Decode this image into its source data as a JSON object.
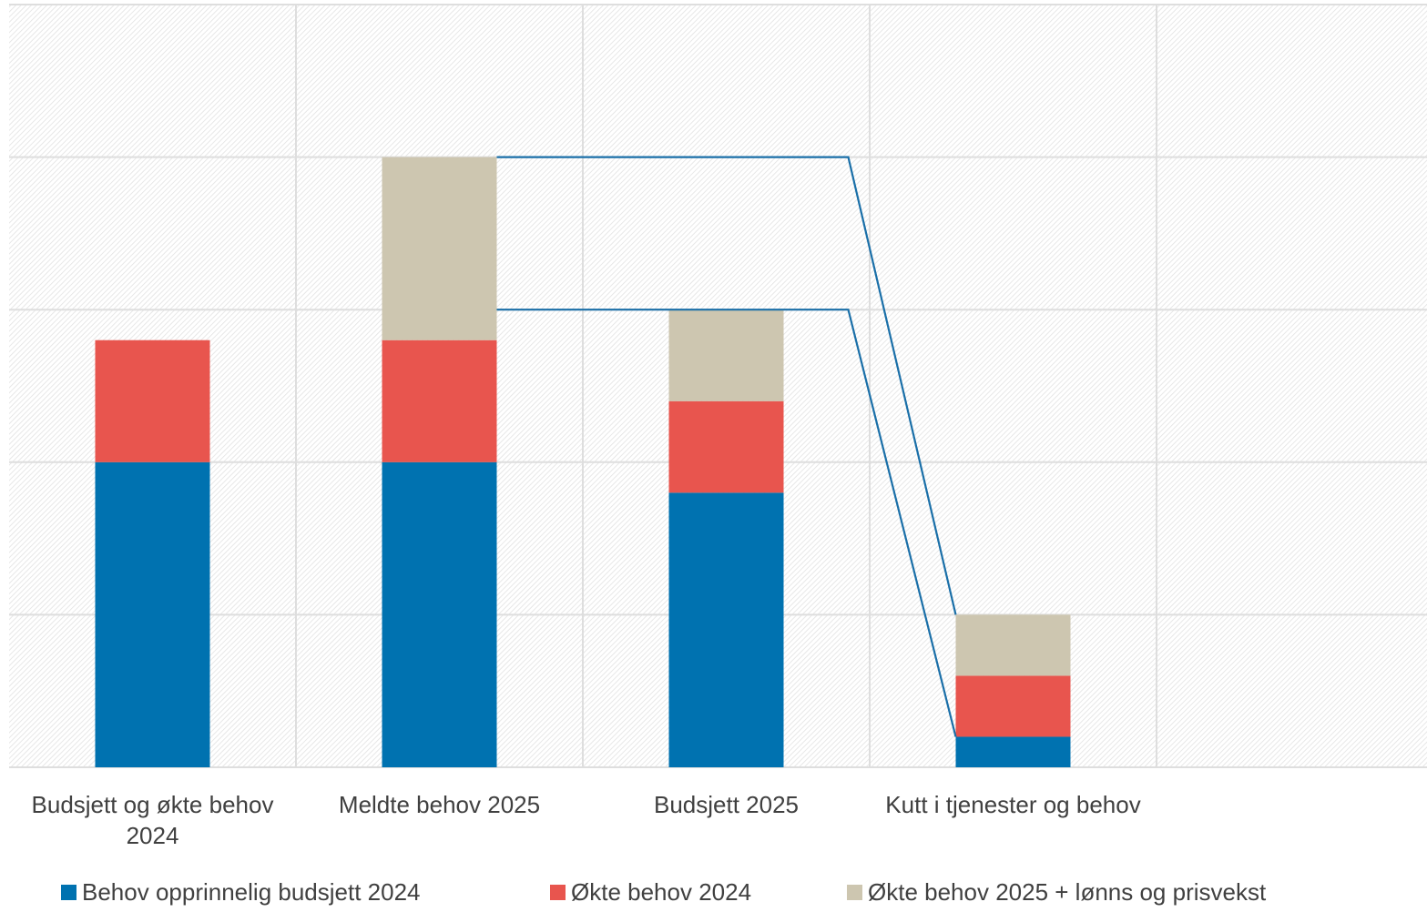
{
  "chart_data": {
    "type": "stacked-bar",
    "categories": [
      "Budsjett og økte behov 2024",
      "Meldte behov 2025",
      "Budsjett 2025",
      "Kutt i tjenester og behov",
      null
    ],
    "series": [
      {
        "name": "Behov opprinnelig budsjett 2024",
        "color": "#0072b0",
        "values": [
          2.0,
          2.0,
          1.8,
          0.2,
          null
        ]
      },
      {
        "name": "Økte behov 2024",
        "color": "#e8554e",
        "values": [
          0.8,
          0.8,
          0.6,
          0.4,
          null
        ]
      },
      {
        "name": "Økte behov 2025 + lønns og prisvekst",
        "color": "#cdc6b0",
        "values": [
          null,
          1.2,
          0.6,
          0.4,
          null
        ]
      }
    ],
    "ylim": [
      0,
      5
    ],
    "yticks": [
      0,
      1,
      2,
      3,
      4,
      5
    ],
    "grid": true,
    "legend": "bottom",
    "connector_color": "#1a6fa8"
  }
}
